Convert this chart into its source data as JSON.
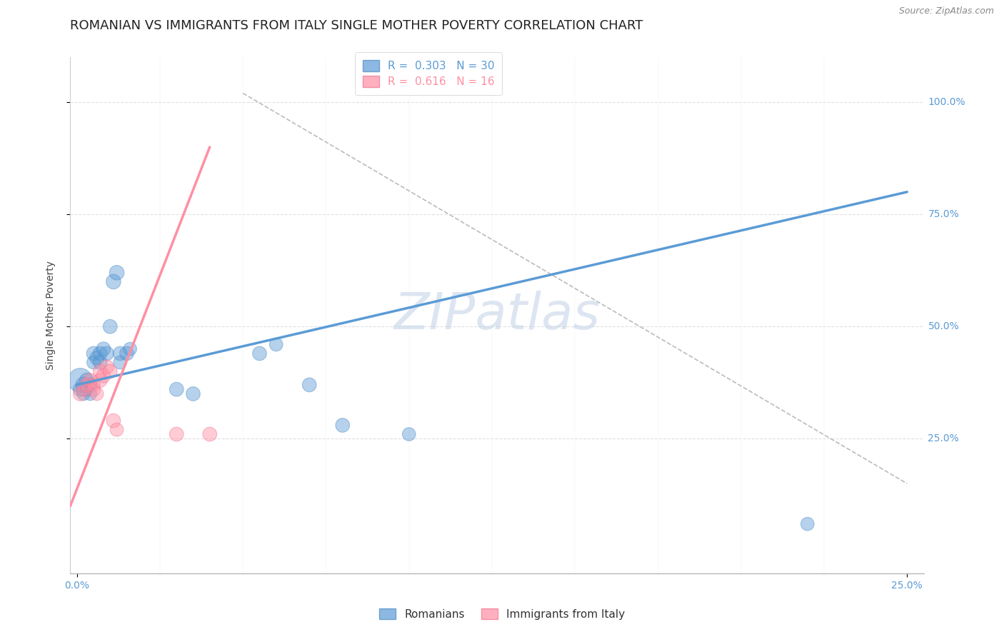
{
  "title": "ROMANIAN VS IMMIGRANTS FROM ITALY SINGLE MOTHER POVERTY CORRELATION CHART",
  "source": "Source: ZipAtlas.com",
  "ylabel_label": "Single Mother Poverty",
  "xlim": [
    -0.002,
    0.255
  ],
  "ylim": [
    -0.05,
    1.1
  ],
  "blue_R": 0.303,
  "blue_N": 30,
  "pink_R": 0.616,
  "pink_N": 16,
  "blue_color": "#5B9BD5",
  "pink_color": "#FF8FA3",
  "blue_edge": "#4A8AC4",
  "pink_edge": "#EE7090",
  "blue_legend": "Romanians",
  "pink_legend": "Immigrants from Italy",
  "blue_scatter_x": [
    0.001,
    0.001,
    0.002,
    0.002,
    0.003,
    0.003,
    0.004,
    0.004,
    0.005,
    0.005,
    0.006,
    0.007,
    0.007,
    0.008,
    0.009,
    0.01,
    0.011,
    0.012,
    0.013,
    0.013,
    0.015,
    0.016,
    0.03,
    0.035,
    0.055,
    0.06,
    0.07,
    0.08,
    0.1,
    0.22
  ],
  "blue_scatter_y": [
    0.38,
    0.36,
    0.37,
    0.35,
    0.38,
    0.36,
    0.37,
    0.35,
    0.44,
    0.42,
    0.43,
    0.44,
    0.42,
    0.45,
    0.44,
    0.5,
    0.6,
    0.62,
    0.44,
    0.42,
    0.44,
    0.45,
    0.36,
    0.35,
    0.44,
    0.46,
    0.37,
    0.28,
    0.26,
    0.06
  ],
  "blue_sizes": [
    600,
    200,
    250,
    180,
    220,
    180,
    200,
    180,
    200,
    180,
    200,
    200,
    200,
    200,
    200,
    200,
    220,
    220,
    200,
    180,
    200,
    180,
    200,
    200,
    200,
    180,
    200,
    200,
    180,
    180
  ],
  "pink_scatter_x": [
    0.001,
    0.002,
    0.003,
    0.004,
    0.005,
    0.005,
    0.006,
    0.007,
    0.007,
    0.008,
    0.009,
    0.01,
    0.011,
    0.012,
    0.03,
    0.04
  ],
  "pink_scatter_y": [
    0.35,
    0.36,
    0.37,
    0.38,
    0.37,
    0.36,
    0.35,
    0.38,
    0.4,
    0.39,
    0.41,
    0.4,
    0.29,
    0.27,
    0.26,
    0.26
  ],
  "pink_sizes": [
    200,
    180,
    200,
    200,
    180,
    200,
    180,
    200,
    200,
    200,
    200,
    200,
    200,
    180,
    200,
    200
  ],
  "blue_line_x": [
    0.0,
    0.25
  ],
  "blue_line_y": [
    0.37,
    0.8
  ],
  "pink_line_x": [
    -0.002,
    0.04
  ],
  "pink_line_y": [
    0.1,
    0.9
  ],
  "diag_line_x": [
    0.05,
    0.25
  ],
  "diag_line_y": [
    1.02,
    0.15
  ],
  "watermark": "ZIPatlas",
  "watermark_color": "#C5D5E8",
  "background_color": "#FFFFFF",
  "grid_color": "#E0E0E0",
  "title_fontsize": 13,
  "axis_label_fontsize": 10,
  "tick_fontsize": 10,
  "legend_fontsize": 11
}
